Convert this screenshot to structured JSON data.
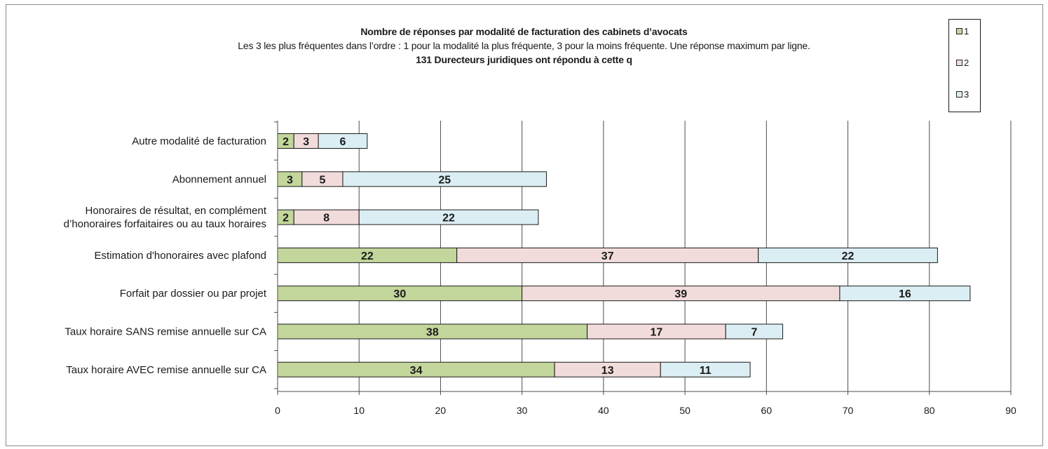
{
  "chart_data": {
    "type": "bar",
    "orientation": "horizontal",
    "stacked": true,
    "title": "Nombre de réponses par modalité de facturation des cabinets d’avocats",
    "subtitle": "Les 3 les plus fréquentes dans l’ordre : 1 pour la modalité la plus fréquente, 3 pour la moins fréquente.  Une réponse maximum par ligne.",
    "subtitle2": "131 Durecteurs juridiques ont répondu à cette q",
    "categories": [
      "Autre modalité de facturation",
      "Abonnement annuel",
      "Honoraires de résultat, en complément d’honoraires forfaitaires ou au taux horaires",
      "Estimation d'honoraires avec plafond",
      "Forfait par dossier ou par projet",
      "Taux horaire SANS remise annuelle sur CA",
      "Taux horaire AVEC remise annuelle sur CA"
    ],
    "category_lines": [
      [
        "Autre modalité de facturation"
      ],
      [
        "Abonnement annuel"
      ],
      [
        "Honoraires de résultat, en complément",
        "d’honoraires forfaitaires ou au taux horaires"
      ],
      [
        "Estimation d'honoraires avec plafond"
      ],
      [
        "Forfait par dossier ou par projet"
      ],
      [
        "Taux horaire SANS remise annuelle sur CA"
      ],
      [
        "Taux horaire AVEC remise annuelle sur CA"
      ]
    ],
    "series": [
      {
        "name": "1",
        "color": "#c3d69b",
        "values": [
          2,
          3,
          2,
          22,
          30,
          38,
          34
        ]
      },
      {
        "name": "2",
        "color": "#f2dcdb",
        "values": [
          3,
          5,
          8,
          37,
          39,
          17,
          13
        ]
      },
      {
        "name": "3",
        "color": "#dbeef4",
        "values": [
          6,
          25,
          22,
          22,
          16,
          7,
          11
        ]
      }
    ],
    "xlim": [
      0,
      90
    ],
    "xticks": [
      0,
      10,
      20,
      30,
      40,
      50,
      60,
      70,
      80,
      90
    ],
    "grid": "vertical",
    "legend_position": "top-right"
  }
}
